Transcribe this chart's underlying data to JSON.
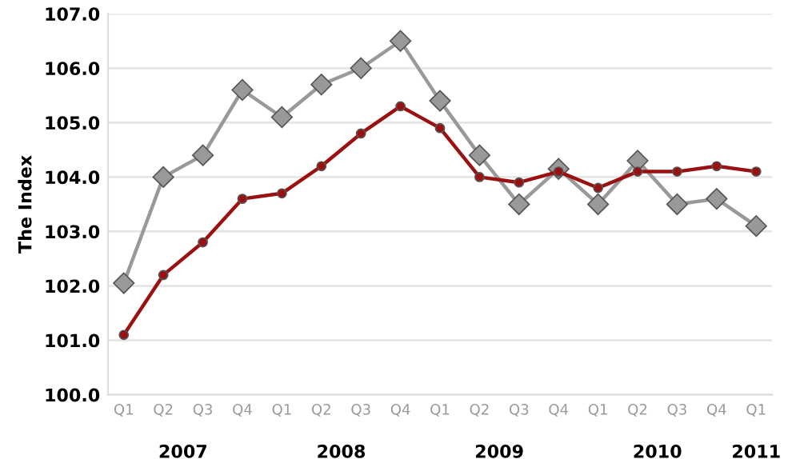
{
  "chart_data": {
    "type": "line",
    "ylabel": "The Index",
    "categories": [
      "Q1",
      "Q2",
      "Q3",
      "Q4",
      "Q1",
      "Q2",
      "Q3",
      "Q4",
      "Q1",
      "Q2",
      "Q3",
      "Q4",
      "Q1",
      "Q2",
      "Q3",
      "Q4",
      "Q1"
    ],
    "series": [
      {
        "color": "#999999",
        "marker": "diamond",
        "values": [
          102.05,
          104.0,
          104.4,
          105.6,
          105.1,
          105.7,
          106.0,
          106.5,
          105.4,
          104.4,
          103.5,
          104.15,
          103.5,
          104.3,
          103.5,
          103.6,
          103.1
        ]
      },
      {
        "color": "#9b1111",
        "marker": "circle",
        "values": [
          101.1,
          102.2,
          102.8,
          103.6,
          103.7,
          104.2,
          104.8,
          105.3,
          104.9,
          104.0,
          103.9,
          104.1,
          103.8,
          104.1,
          104.1,
          104.2,
          104.1
        ]
      }
    ],
    "annotations": [
      "2007",
      "2008",
      "2009",
      "2010",
      "2011"
    ],
    "ylim": [
      100,
      107
    ],
    "yticks": [
      {
        "value": 100,
        "label": "100.0"
      },
      {
        "value": 101,
        "label": "101.0"
      },
      {
        "value": 102,
        "label": "102.0"
      },
      {
        "value": 103,
        "label": "103.0"
      },
      {
        "value": 104,
        "label": "104.0"
      },
      {
        "value": 105,
        "label": "105.0"
      },
      {
        "value": 106,
        "label": "106.0"
      },
      {
        "value": 107,
        "label": "107.0"
      }
    ],
    "grid": "y",
    "line_style": "solid",
    "legend": false
  }
}
